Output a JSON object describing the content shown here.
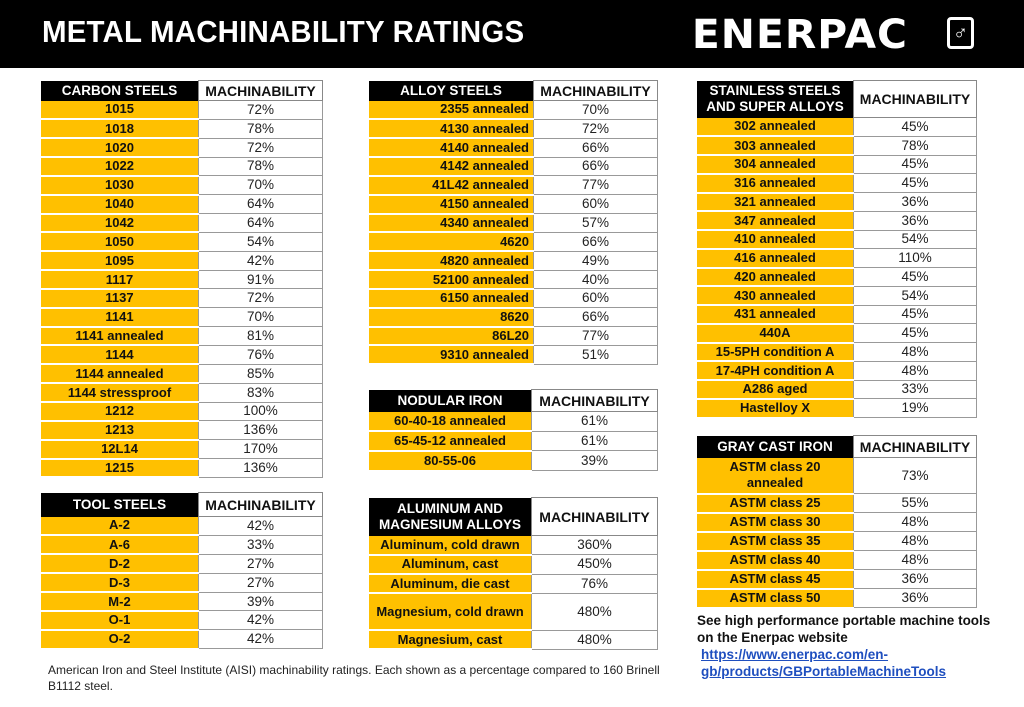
{
  "header": {
    "title": "METAL MACHINABILITY RATINGS",
    "logo": "ENERPAC",
    "logo_icon": "enerpac-hook-icon"
  },
  "colors": {
    "name_cell": "#FFC000",
    "header_bg": "#000000",
    "link": "#1f4fbf"
  },
  "value_header": "MACHINABILITY",
  "tables": {
    "carbon": {
      "title": "CARBON STEELS",
      "rows": [
        [
          "1015",
          "72%"
        ],
        [
          "1018",
          "78%"
        ],
        [
          "1020",
          "72%"
        ],
        [
          "1022",
          "78%"
        ],
        [
          "1030",
          "70%"
        ],
        [
          "1040",
          "64%"
        ],
        [
          "1042",
          "64%"
        ],
        [
          "1050",
          "54%"
        ],
        [
          "1095",
          "42%"
        ],
        [
          "1117",
          "91%"
        ],
        [
          "1137",
          "72%"
        ],
        [
          "1141",
          "70%"
        ],
        [
          "1141 annealed",
          "81%"
        ],
        [
          "1144",
          "76%"
        ],
        [
          "1144 annealed",
          "85%"
        ],
        [
          "1144 stressproof",
          "83%"
        ],
        [
          "1212",
          "100%"
        ],
        [
          "1213",
          "136%"
        ],
        [
          "12L14",
          "170%"
        ],
        [
          "1215",
          "136%"
        ]
      ]
    },
    "tool": {
      "title": "TOOL STEELS",
      "rows": [
        [
          "A-2",
          "42%"
        ],
        [
          "A-6",
          "33%"
        ],
        [
          "D-2",
          "27%"
        ],
        [
          "D-3",
          "27%"
        ],
        [
          "M-2",
          "39%"
        ],
        [
          "O-1",
          "42%"
        ],
        [
          "O-2",
          "42%"
        ]
      ]
    },
    "alloy": {
      "title": "ALLOY STEELS",
      "rows": [
        [
          "2355 annealed",
          "70%"
        ],
        [
          "4130 annealed",
          "72%"
        ],
        [
          "4140 annealed",
          "66%"
        ],
        [
          "4142 annealed",
          "66%"
        ],
        [
          "41L42 annealed",
          "77%"
        ],
        [
          "4150 annealed",
          "60%"
        ],
        [
          "4340 annealed",
          "57%"
        ],
        [
          "4620",
          "66%"
        ],
        [
          "4820 annealed",
          "49%"
        ],
        [
          "52100 annealed",
          "40%"
        ],
        [
          "6150 annealed",
          "60%"
        ],
        [
          "8620",
          "66%"
        ],
        [
          "86L20",
          "77%"
        ],
        [
          "9310 annealed",
          "51%"
        ]
      ]
    },
    "nodular": {
      "title": "NODULAR IRON",
      "rows": [
        [
          "60-40-18 annealed",
          "61%"
        ],
        [
          "65-45-12 annealed",
          "61%"
        ],
        [
          "80-55-06",
          "39%"
        ]
      ]
    },
    "aluminum": {
      "title": "ALUMINUM AND MAGNESIUM ALLOYS",
      "rows": [
        [
          "Aluminum, cold drawn",
          "360%"
        ],
        [
          "Aluminum, cast",
          "450%"
        ],
        [
          "Aluminum, die cast",
          "76%"
        ],
        [
          "Magnesium, cold drawn",
          "480%"
        ],
        [
          "Magnesium, cast",
          "480%"
        ]
      ]
    },
    "stainless": {
      "title": "STAINLESS STEELS AND SUPER ALLOYS",
      "rows": [
        [
          "302 annealed",
          "45%"
        ],
        [
          "303 annealed",
          "78%"
        ],
        [
          "304 annealed",
          "45%"
        ],
        [
          "316 annealed",
          "45%"
        ],
        [
          "321 annealed",
          "36%"
        ],
        [
          "347 annealed",
          "36%"
        ],
        [
          "410 annealed",
          "54%"
        ],
        [
          "416 annealed",
          "110%"
        ],
        [
          "420 annealed",
          "45%"
        ],
        [
          "430 annealed",
          "54%"
        ],
        [
          "431 annealed",
          "45%"
        ],
        [
          "440A",
          "45%"
        ],
        [
          "15-5PH condition A",
          "48%"
        ],
        [
          "17-4PH condition A",
          "48%"
        ],
        [
          "A286 aged",
          "33%"
        ],
        [
          "Hastelloy X",
          "19%"
        ]
      ]
    },
    "gray": {
      "title": "GRAY CAST IRON",
      "rows": [
        [
          "ASTM class 20 annealed",
          "73%"
        ],
        [
          "ASTM class 25",
          "55%"
        ],
        [
          "ASTM class 30",
          "48%"
        ],
        [
          "ASTM class 35",
          "48%"
        ],
        [
          "ASTM class 40",
          "48%"
        ],
        [
          "ASTM class 45",
          "36%"
        ],
        [
          "ASTM class 50",
          "36%"
        ]
      ]
    }
  },
  "note": "American Iron and Steel Institute (AISI) machinability ratings.  Each shown as a percentage compared to 160 Brinell B1112 steel.",
  "promo": {
    "text": "See high performance portable machine tools on the Enerpac website",
    "link": "https://www.enerpac.com/en-gb/products/GBPortableMachineTools"
  }
}
